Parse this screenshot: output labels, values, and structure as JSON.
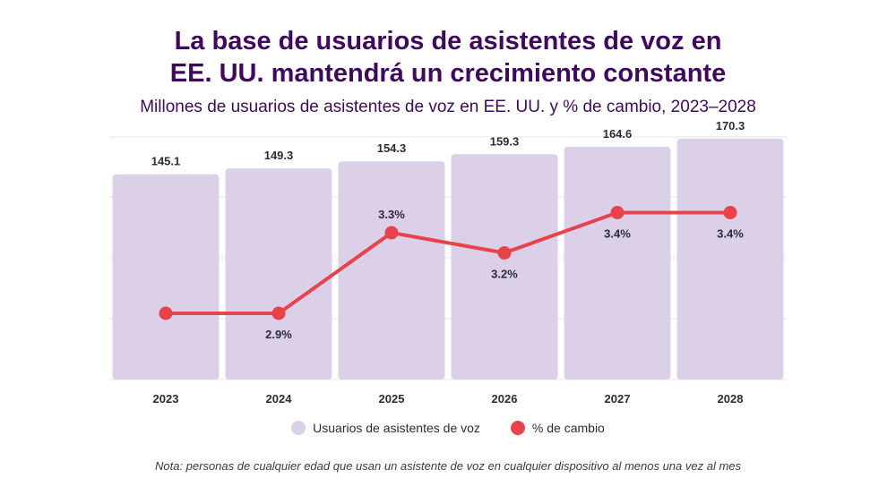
{
  "title_line1": "La base de usuarios de asistentes de voz en",
  "title_line2": "EE. UU. mantendrá un crecimiento constante",
  "subtitle": "Millones de usuarios de asistentes de voz en EE. UU. y % de cambio, 2023–2028",
  "note": "Nota: personas de cualquier edad que usan un asistente de voz en cualquier dispositivo al menos una vez al mes",
  "colors": {
    "bar": "#dccfe8",
    "line": "#e8434b",
    "title": "#3f0a5e",
    "grid": "#e6e6e6"
  },
  "chart_data": {
    "type": "bar",
    "title": "La base de usuarios de asistentes de voz en EE. UU. mantendrá un crecimiento constante",
    "subtitle": "Millones de usuarios de asistentes de voz en EE. UU. y % de cambio, 2023–2028",
    "categories": [
      "2023",
      "2024",
      "2025",
      "2026",
      "2027",
      "2028"
    ],
    "series": [
      {
        "name": "Usuarios de asistentes de voz",
        "type": "bar",
        "values": [
          145.1,
          149.3,
          154.3,
          159.3,
          164.6,
          170.3
        ],
        "labels": [
          "145.1",
          "149.3",
          "154.3",
          "159.3",
          "164.6",
          "170.3"
        ]
      },
      {
        "name": "% de cambio",
        "type": "line",
        "values": [
          2.9,
          2.9,
          3.3,
          3.2,
          3.4,
          3.4
        ],
        "labels": [
          "",
          "2.9%",
          "3.3%",
          "3.2%",
          "3.4%",
          "3.4%"
        ]
      }
    ],
    "bar_axis_range": [
      0,
      180
    ],
    "line_axis_range": [
      2.5,
      3.5
    ],
    "grid": true,
    "legend_position": "bottom"
  }
}
